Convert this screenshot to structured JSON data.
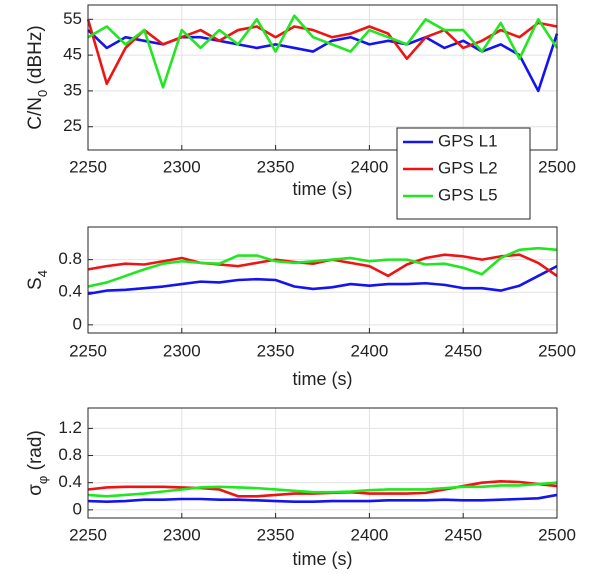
{
  "chart_data": [
    {
      "type": "line",
      "xlabel": "time (s)",
      "ylabel": [
        {
          "text": "C/N"
        },
        {
          "text": "0",
          "sub": true
        },
        {
          "text": " (dBHz)"
        }
      ],
      "x": [
        2250,
        2260,
        2270,
        2280,
        2290,
        2300,
        2310,
        2320,
        2330,
        2340,
        2350,
        2360,
        2370,
        2380,
        2390,
        2400,
        2410,
        2420,
        2430,
        2440,
        2450,
        2460,
        2470,
        2480,
        2490,
        2500
      ],
      "xlim": [
        2250,
        2500
      ],
      "xticks": [
        2250,
        2300,
        2350,
        2400,
        2450,
        2500
      ],
      "ylim": [
        18.5,
        59
      ],
      "yticks": [
        25,
        35,
        45,
        55
      ],
      "grid": true,
      "legend": "lower right",
      "series": [
        {
          "name": "GPS L1",
          "color": "#1414f0",
          "values": [
            52,
            47,
            50,
            49,
            48,
            50,
            50,
            49,
            48,
            47,
            48,
            47,
            46,
            49,
            50,
            48,
            49,
            48,
            50,
            47,
            49,
            46,
            48,
            45,
            35,
            51
          ]
        },
        {
          "name": "GPS L2",
          "color": "#ee1414",
          "values": [
            55,
            37,
            47,
            52,
            48,
            50,
            52,
            49,
            52,
            53,
            50,
            53,
            52,
            50,
            51,
            53,
            51,
            44,
            50,
            52,
            47,
            49,
            52,
            50,
            54,
            53
          ]
        },
        {
          "name": "GPS L5",
          "color": "#22e622",
          "values": [
            50,
            53,
            48,
            52,
            36,
            52,
            47,
            52,
            48,
            55,
            46,
            56,
            50,
            48,
            46,
            52,
            50,
            48,
            55,
            52,
            52,
            46,
            54,
            44,
            55,
            47
          ]
        }
      ]
    },
    {
      "type": "line",
      "xlabel": "time (s)",
      "ylabel": [
        {
          "text": "S"
        },
        {
          "text": "4",
          "sub": true
        }
      ],
      "x": [
        2250,
        2260,
        2270,
        2280,
        2290,
        2300,
        2310,
        2320,
        2330,
        2340,
        2350,
        2360,
        2370,
        2380,
        2390,
        2400,
        2410,
        2420,
        2430,
        2440,
        2450,
        2460,
        2470,
        2480,
        2490,
        2500
      ],
      "xlim": [
        2250,
        2500
      ],
      "xticks": [
        2250,
        2300,
        2350,
        2400,
        2450,
        2500
      ],
      "ylim": [
        -0.1,
        1.2
      ],
      "yticks": [
        0,
        0.4,
        0.8
      ],
      "grid": true,
      "series": [
        {
          "color": "#1414f0",
          "values": [
            0.38,
            0.42,
            0.43,
            0.45,
            0.47,
            0.5,
            0.53,
            0.52,
            0.55,
            0.56,
            0.55,
            0.47,
            0.44,
            0.46,
            0.5,
            0.48,
            0.5,
            0.5,
            0.51,
            0.49,
            0.45,
            0.45,
            0.42,
            0.48,
            0.6,
            0.72
          ]
        },
        {
          "color": "#ee1414",
          "values": [
            0.68,
            0.72,
            0.75,
            0.74,
            0.78,
            0.82,
            0.76,
            0.74,
            0.72,
            0.76,
            0.8,
            0.77,
            0.75,
            0.8,
            0.76,
            0.72,
            0.6,
            0.74,
            0.82,
            0.86,
            0.84,
            0.8,
            0.84,
            0.86,
            0.76,
            0.6
          ]
        },
        {
          "color": "#22e622",
          "values": [
            0.47,
            0.52,
            0.6,
            0.68,
            0.75,
            0.78,
            0.76,
            0.75,
            0.85,
            0.85,
            0.78,
            0.76,
            0.78,
            0.8,
            0.82,
            0.78,
            0.8,
            0.8,
            0.74,
            0.75,
            0.7,
            0.62,
            0.82,
            0.92,
            0.94,
            0.92
          ]
        }
      ]
    },
    {
      "type": "line",
      "xlabel": "time (s)",
      "ylabel": [
        {
          "text": "σ"
        },
        {
          "text": "φ",
          "sub": true
        },
        {
          "text": " (rad)"
        }
      ],
      "x": [
        2250,
        2260,
        2270,
        2280,
        2290,
        2300,
        2310,
        2320,
        2330,
        2340,
        2350,
        2360,
        2370,
        2380,
        2390,
        2400,
        2410,
        2420,
        2430,
        2440,
        2450,
        2460,
        2470,
        2480,
        2490,
        2500
      ],
      "xlim": [
        2250,
        2500
      ],
      "xticks": [
        2250,
        2300,
        2350,
        2400,
        2450,
        2500
      ],
      "ylim": [
        -0.12,
        1.5
      ],
      "yticks": [
        0,
        0.4,
        0.8,
        1.2
      ],
      "grid": true,
      "series": [
        {
          "color": "#1414f0",
          "values": [
            0.13,
            0.12,
            0.13,
            0.15,
            0.15,
            0.16,
            0.16,
            0.15,
            0.15,
            0.14,
            0.13,
            0.12,
            0.12,
            0.13,
            0.13,
            0.13,
            0.14,
            0.14,
            0.14,
            0.15,
            0.14,
            0.14,
            0.15,
            0.16,
            0.17,
            0.22
          ]
        },
        {
          "color": "#ee1414",
          "values": [
            0.3,
            0.33,
            0.34,
            0.34,
            0.34,
            0.33,
            0.32,
            0.3,
            0.2,
            0.2,
            0.22,
            0.24,
            0.24,
            0.25,
            0.26,
            0.24,
            0.24,
            0.24,
            0.25,
            0.3,
            0.35,
            0.4,
            0.42,
            0.41,
            0.38,
            0.35
          ]
        },
        {
          "color": "#22e622",
          "values": [
            0.22,
            0.2,
            0.22,
            0.24,
            0.27,
            0.3,
            0.33,
            0.34,
            0.33,
            0.32,
            0.3,
            0.28,
            0.26,
            0.26,
            0.27,
            0.29,
            0.3,
            0.3,
            0.3,
            0.32,
            0.34,
            0.34,
            0.36,
            0.36,
            0.38,
            0.4
          ]
        }
      ]
    }
  ]
}
